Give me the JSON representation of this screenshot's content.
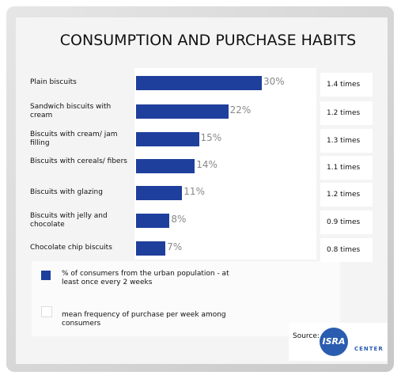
{
  "chart_data": {
    "type": "bar",
    "title": "CONSUMPTION AND PURCHASE HABITS",
    "categories": [
      "Plain biscuits",
      "Sandwich biscuits with cream",
      "Biscuits with cream/ jam filling",
      "Biscuits with cereals/ fibers",
      "Biscuits with glazing",
      "Biscuits with jelly and chocolate",
      "Chocolate chip biscuits"
    ],
    "series": [
      {
        "name": "% of consumers from the urban population - at least once every 2 weeks",
        "color": "#1f3f9c",
        "values": [
          30,
          22,
          15,
          14,
          11,
          8,
          7
        ],
        "value_labels": [
          "30%",
          "22%",
          "15%",
          "14%",
          "11%",
          "8%",
          "7%"
        ]
      },
      {
        "name": "mean frequency of purchase per week among consumers",
        "color": "#ffffff",
        "value_labels": [
          "1.4 times",
          "1.2 times",
          "1.3 times",
          "1.1 times",
          "1.2 times",
          "0.9 times",
          "0.8 times"
        ]
      }
    ],
    "source": {
      "label": "Source:",
      "logo": "ISRA",
      "logo_sub": "CENTER"
    }
  }
}
